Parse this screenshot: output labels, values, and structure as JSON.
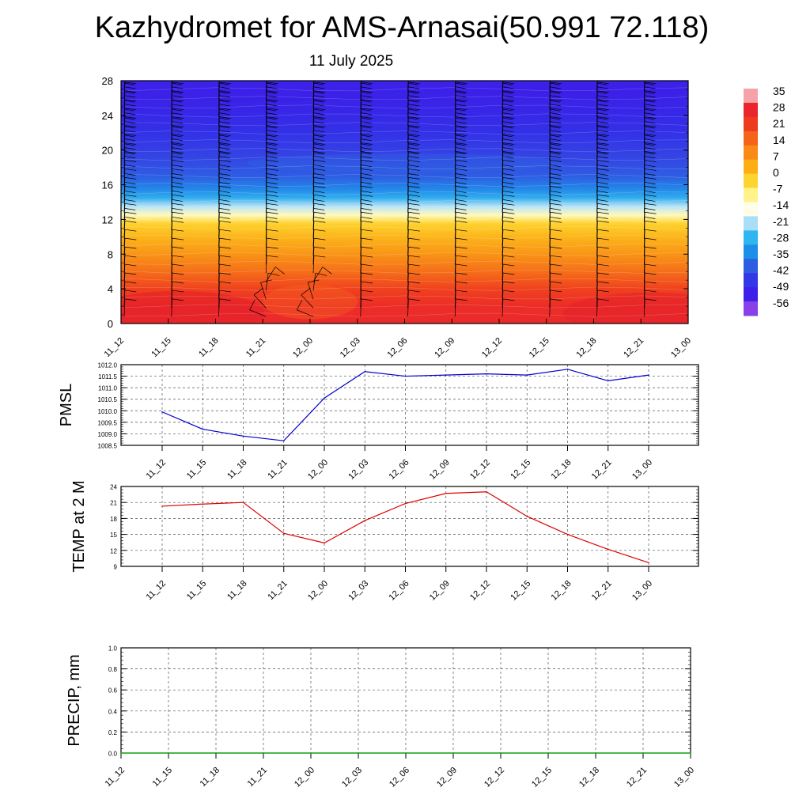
{
  "header": {
    "title": "Kazhydromet for AMS-Arnasai(50.991 72.118)",
    "subtitle": "11 July 2025"
  },
  "chart_data": [
    {
      "type": "heatmap",
      "panel": "temperature-height-section",
      "xlabel": "",
      "ylabel": "",
      "x": [
        "11_12",
        "11_15",
        "11_18",
        "11_21",
        "12_00",
        "12_03",
        "12_06",
        "12_09",
        "12_12",
        "12_15",
        "12_18",
        "12_21",
        "13_00"
      ],
      "y_ticks": [
        "0",
        "4",
        "8",
        "12",
        "16",
        "20",
        "24",
        "28"
      ],
      "ylim": [
        0,
        28
      ],
      "colorbar": {
        "labels": [
          "35",
          "28",
          "21",
          "14",
          "7",
          "0",
          "-7",
          "-14",
          "-21",
          "-28",
          "-35",
          "-42",
          "-49",
          "-56"
        ],
        "colors": [
          "#f5a3a8",
          "#e8262c",
          "#ee3a1e",
          "#f5621a",
          "#f98a16",
          "#fcae14",
          "#fdd530",
          "#fff38a",
          "#fffce8",
          "#a9def7",
          "#2fb6f0",
          "#1e8fe8",
          "#2d5ee0",
          "#3338e6",
          "#3e20e8",
          "#8a40e8"
        ]
      },
      "temp_profile_by_height": [
        {
          "h": 0,
          "t": 30
        },
        {
          "h": 2,
          "t": 28
        },
        {
          "h": 4,
          "t": 22
        },
        {
          "h": 6,
          "t": 15
        },
        {
          "h": 8,
          "t": 9
        },
        {
          "h": 10,
          "t": 3
        },
        {
          "h": 11.5,
          "t": -3
        },
        {
          "h": 12.5,
          "t": -10
        },
        {
          "h": 13.5,
          "t": -17
        },
        {
          "h": 14.5,
          "t": -27
        },
        {
          "h": 15.5,
          "t": -33
        },
        {
          "h": 17,
          "t": -40
        },
        {
          "h": 19,
          "t": -45
        },
        {
          "h": 22,
          "t": -50
        },
        {
          "h": 25,
          "t": -55
        },
        {
          "h": 28,
          "t": -57
        }
      ],
      "grid": false
    },
    {
      "type": "line",
      "panel": "pmsl",
      "ylabel": "PMSL",
      "categories": [
        "11_12",
        "11_15",
        "11_18",
        "11_21",
        "12_00",
        "12_03",
        "12_06",
        "12_09",
        "12_12",
        "12_15",
        "12_18",
        "12_21",
        "13_00"
      ],
      "y_ticks": [
        "1008.5",
        "1009.0",
        "1009.5",
        "1010.0",
        "1010.5",
        "1011.0",
        "1011.5",
        "1012.0"
      ],
      "ylim": [
        1008.5,
        1012.0
      ],
      "series": [
        {
          "values": [
            1009.95,
            1009.2,
            1008.9,
            1008.7,
            1010.55,
            1011.7,
            1011.5,
            1011.55,
            1011.6,
            1011.55,
            1011.8,
            1011.3,
            1011.55
          ],
          "color": "#0000cc"
        }
      ],
      "grid": true
    },
    {
      "type": "line",
      "panel": "temp-2m",
      "ylabel": "TEMP at 2 M",
      "categories": [
        "11_12",
        "11_15",
        "11_18",
        "11_21",
        "12_00",
        "12_03",
        "12_06",
        "12_09",
        "12_12",
        "12_15",
        "12_18",
        "12_21",
        "13_00"
      ],
      "y_ticks": [
        "9",
        "12",
        "15",
        "18",
        "21",
        "24"
      ],
      "ylim": [
        9,
        24
      ],
      "series": [
        {
          "values": [
            20.3,
            20.7,
            21.0,
            15.2,
            13.4,
            17.6,
            20.8,
            22.7,
            23.0,
            18.4,
            15.0,
            12.2,
            9.7
          ],
          "color": "#dd0000"
        }
      ],
      "grid": true
    },
    {
      "type": "line",
      "panel": "precip",
      "ylabel": "PRECIP, mm",
      "categories": [
        "11_12",
        "11_15",
        "11_18",
        "11_21",
        "12_00",
        "12_03",
        "12_06",
        "12_09",
        "12_12",
        "12_15",
        "12_18",
        "12_21",
        "13_00"
      ],
      "y_ticks": [
        "0.0",
        "0.2",
        "0.4",
        "0.6",
        "0.8",
        "1.0"
      ],
      "ylim": [
        0,
        1
      ],
      "series": [
        {
          "values": [
            0,
            0,
            0,
            0,
            0,
            0,
            0,
            0,
            0,
            0,
            0,
            0,
            0
          ],
          "color": "#00aa00"
        }
      ],
      "grid": true
    }
  ]
}
